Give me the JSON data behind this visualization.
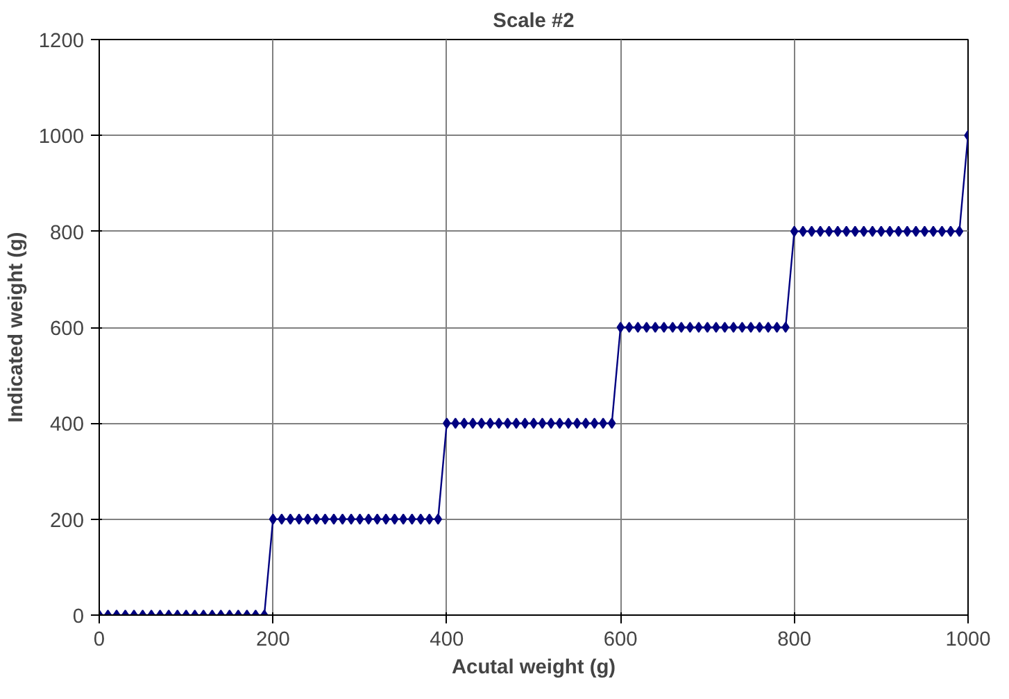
{
  "chart_data": {
    "type": "line",
    "title": "Scale #2",
    "xlabel": "Acutal weight (g)",
    "ylabel": "Indicated weight (g)",
    "x": [
      0,
      10,
      20,
      30,
      40,
      50,
      60,
      70,
      80,
      90,
      100,
      110,
      120,
      130,
      140,
      150,
      160,
      170,
      180,
      190,
      200,
      210,
      220,
      230,
      240,
      250,
      260,
      270,
      280,
      290,
      300,
      310,
      320,
      330,
      340,
      350,
      360,
      370,
      380,
      390,
      400,
      410,
      420,
      430,
      440,
      450,
      460,
      470,
      480,
      490,
      500,
      510,
      520,
      530,
      540,
      550,
      560,
      570,
      580,
      590,
      600,
      610,
      620,
      630,
      640,
      650,
      660,
      670,
      680,
      690,
      700,
      710,
      720,
      730,
      740,
      750,
      760,
      770,
      780,
      790,
      800,
      810,
      820,
      830,
      840,
      850,
      860,
      870,
      880,
      890,
      900,
      910,
      920,
      930,
      940,
      950,
      960,
      970,
      980,
      990,
      1000
    ],
    "series": [
      {
        "color": "#000080",
        "values": [
          0,
          0,
          0,
          0,
          0,
          0,
          0,
          0,
          0,
          0,
          0,
          0,
          0,
          0,
          0,
          0,
          0,
          0,
          0,
          0,
          200,
          200,
          200,
          200,
          200,
          200,
          200,
          200,
          200,
          200,
          200,
          200,
          200,
          200,
          200,
          200,
          200,
          200,
          200,
          200,
          400,
          400,
          400,
          400,
          400,
          400,
          400,
          400,
          400,
          400,
          400,
          400,
          400,
          400,
          400,
          400,
          400,
          400,
          400,
          400,
          600,
          600,
          600,
          600,
          600,
          600,
          600,
          600,
          600,
          600,
          600,
          600,
          600,
          600,
          600,
          600,
          600,
          600,
          600,
          600,
          800,
          800,
          800,
          800,
          800,
          800,
          800,
          800,
          800,
          800,
          800,
          800,
          800,
          800,
          800,
          800,
          800,
          800,
          800,
          800,
          1000
        ]
      }
    ],
    "xlim": [
      0,
      1000
    ],
    "xticks": [
      0,
      200,
      400,
      600,
      800,
      1000
    ],
    "ylim": [
      0,
      1200
    ],
    "yticks": [
      0,
      200,
      400,
      600,
      800,
      1000,
      1200
    ],
    "grid": true,
    "marker": "diamond",
    "line_style": "solid"
  }
}
